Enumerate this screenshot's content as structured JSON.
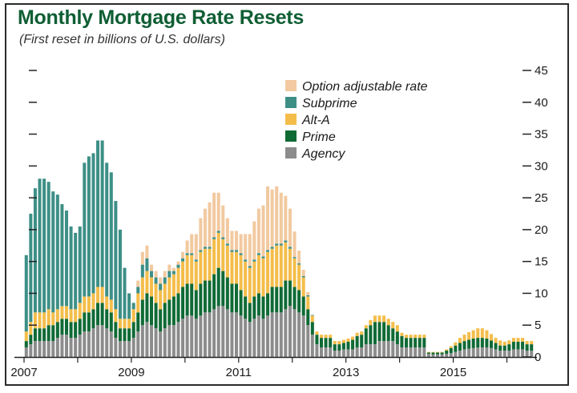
{
  "header": {
    "title": "Monthly Mortgage Rate Resets",
    "subtitle": "(First reset in billions of U.S. dollars)"
  },
  "chart_data": {
    "type": "bar",
    "stacked": true,
    "title": "Monthly Mortgage Rate Resets",
    "subtitle": "(First reset in billions of U.S. dollars)",
    "x_axis": {
      "start": "2007-01",
      "months": 114,
      "tick_labels": [
        "2007",
        "2009",
        "2011",
        "2013",
        "2015"
      ]
    },
    "y_axis": {
      "range": [
        0,
        45
      ],
      "ticks": [
        0,
        5,
        10,
        15,
        20,
        25,
        30,
        35,
        40,
        45
      ],
      "position": "right"
    },
    "legend": {
      "placement": "top-right"
    },
    "colors": {
      "Option adjustable rate": "#f2c9a0",
      "Subprime": "#3d8f86",
      "Alt-A": "#f4bd4a",
      "Prime": "#0f6a35",
      "Agency": "#8c8c8c"
    },
    "series": [
      {
        "name": "Agency",
        "values": [
          1.5,
          2,
          2.5,
          2.5,
          2.5,
          2.5,
          2.5,
          3,
          3.5,
          3.5,
          3,
          3,
          3.5,
          4,
          4,
          4.5,
          5,
          5,
          4.5,
          4,
          3,
          2.5,
          2.5,
          2.5,
          3,
          4,
          5,
          5.5,
          5,
          4.5,
          4,
          4.5,
          5,
          5,
          5.5,
          6,
          6.5,
          6.5,
          6,
          6.5,
          7,
          7,
          7.5,
          8,
          8,
          7.5,
          7,
          7,
          6.5,
          6,
          5.5,
          6,
          6.5,
          6,
          6.5,
          7,
          7,
          7,
          7.5,
          8,
          7.5,
          7,
          6.5,
          5,
          3.5,
          2,
          1.5,
          1.5,
          1.5,
          1,
          1,
          1.2,
          1.2,
          1.2,
          1.5,
          1.5,
          2,
          2,
          2,
          2.5,
          2.5,
          2.5,
          2.5,
          2,
          1.5,
          1.5,
          1.5,
          1.5,
          1.5,
          1.5,
          0.5,
          0.4,
          0.4,
          0.4,
          0.5,
          0.6,
          0.8,
          1,
          1.2,
          1.3,
          1.4,
          1.5,
          1.5,
          1.5,
          1.4,
          1.2,
          1,
          1,
          1,
          1.2,
          1.2,
          1.2,
          1,
          1
        ]
      },
      {
        "name": "Prime",
        "values": [
          1,
          1.5,
          2,
          2,
          2,
          2.5,
          2.5,
          2.5,
          2.5,
          2.5,
          2.5,
          2.5,
          2.5,
          3,
          3,
          3,
          3.5,
          3.5,
          3,
          3,
          2.5,
          2,
          2,
          2,
          2.5,
          3,
          4,
          4.5,
          4.5,
          4,
          3.5,
          4,
          4,
          4.5,
          4.5,
          5,
          5,
          5,
          4.5,
          5,
          5,
          5,
          5.5,
          6,
          5.5,
          5,
          4.5,
          4.5,
          4,
          3.5,
          3,
          3.5,
          3.5,
          3.5,
          3.5,
          4,
          4,
          4,
          4.5,
          4,
          3.5,
          3.5,
          3,
          2.5,
          2,
          1.5,
          1.5,
          1.5,
          1.5,
          1,
          1,
          1,
          1.2,
          1.5,
          1.8,
          2,
          2.5,
          3,
          3.5,
          3,
          3,
          2.5,
          2,
          2,
          1.8,
          1.5,
          1.5,
          1.5,
          1.5,
          1.5,
          0.2,
          0.3,
          0.3,
          0.3,
          0.5,
          0.8,
          1,
          1.2,
          1.3,
          1.4,
          1.5,
          1.5,
          1.5,
          1.4,
          1.2,
          1,
          0.8,
          0.8,
          1,
          1.2,
          1.2,
          1.2,
          1,
          1
        ]
      },
      {
        "name": "Alt-A",
        "values": [
          1.5,
          2,
          2.5,
          2.5,
          2.5,
          2.5,
          2,
          2,
          2,
          2,
          2,
          2,
          2.5,
          2.5,
          2.5,
          2.5,
          2.5,
          2.5,
          2,
          2,
          2,
          1.5,
          1.5,
          1.5,
          2,
          3,
          3.5,
          3.5,
          3,
          3,
          3,
          3,
          3.5,
          3.5,
          4,
          4,
          4.5,
          4.5,
          4.5,
          5,
          5,
          5,
          5.5,
          5.5,
          5,
          5,
          5,
          5,
          5.5,
          5.5,
          5.5,
          5.5,
          6,
          6,
          6.5,
          6,
          6.5,
          6.5,
          6,
          5,
          4.5,
          4,
          3,
          2,
          1,
          0.5,
          0.5,
          0.5,
          0.5,
          0.5,
          0.5,
          0.5,
          0.5,
          0.5,
          0.5,
          0.5,
          0.5,
          0.8,
          1,
          1,
          1,
          1,
          1,
          1,
          0.5,
          0.5,
          0.5,
          0.5,
          0.5,
          0.5,
          0.1,
          0.1,
          0.1,
          0.1,
          0.2,
          0.3,
          0.5,
          0.8,
          1,
          1.2,
          1.3,
          1.5,
          1.5,
          1.3,
          1,
          0.8,
          0.8,
          0.6,
          0.6,
          0.6,
          0.6,
          0.6,
          0.5,
          0.5
        ]
      },
      {
        "name": "Subprime",
        "values": [
          12,
          17,
          19.5,
          21,
          21,
          20,
          19,
          18,
          16,
          15,
          13,
          12,
          12,
          21,
          22,
          22,
          23,
          23,
          21,
          20,
          17,
          14,
          8,
          4,
          1,
          1,
          2,
          2,
          1,
          1,
          1,
          1,
          1,
          0.5,
          0.5,
          0.5,
          0.3,
          0.3,
          0.3,
          0.3,
          0.3,
          0.3,
          0.3,
          0.3,
          0.3,
          0.3,
          0.3,
          0.3,
          0.3,
          0.3,
          0.3,
          0.3,
          0.3,
          0.3,
          0.3,
          0.3,
          0.3,
          0.3,
          0.3,
          0.3,
          0.2,
          0.2,
          0.2,
          0.2,
          0.1,
          0,
          0,
          0,
          0,
          0,
          0,
          0,
          0,
          0,
          0,
          0,
          0,
          0,
          0,
          0,
          0,
          0,
          0,
          0,
          0,
          0,
          0,
          0,
          0,
          0,
          0,
          0,
          0,
          0,
          0,
          0,
          0,
          0,
          0,
          0,
          0,
          0,
          0,
          0,
          0,
          0,
          0,
          0,
          0,
          0,
          0,
          0,
          0,
          0
        ]
      },
      {
        "name": "Option adjustable rate",
        "values": [
          0,
          0,
          0,
          0,
          0,
          0,
          0,
          0,
          0,
          0,
          0,
          0,
          0,
          0,
          0,
          0,
          0,
          0,
          0,
          0,
          0,
          0,
          0,
          0,
          0,
          1,
          2,
          2,
          1,
          1,
          1,
          1,
          1,
          0.5,
          0.5,
          1,
          2,
          3,
          4,
          5,
          6,
          7,
          7,
          6,
          5,
          4,
          3,
          3,
          3,
          4,
          5,
          6,
          7,
          8,
          10,
          9,
          9,
          8,
          7,
          6,
          4,
          2,
          1,
          0.5,
          0,
          0,
          0,
          0,
          0,
          0,
          0,
          0,
          0,
          0,
          0,
          0,
          0,
          0,
          0,
          0,
          0,
          0,
          0,
          0,
          0,
          0,
          0,
          0,
          0,
          0,
          0,
          0,
          0,
          0,
          0,
          0,
          0,
          0,
          0,
          0,
          0,
          0,
          0,
          0,
          0,
          0,
          0,
          0,
          0,
          0,
          0,
          0,
          0,
          0
        ]
      }
    ]
  }
}
